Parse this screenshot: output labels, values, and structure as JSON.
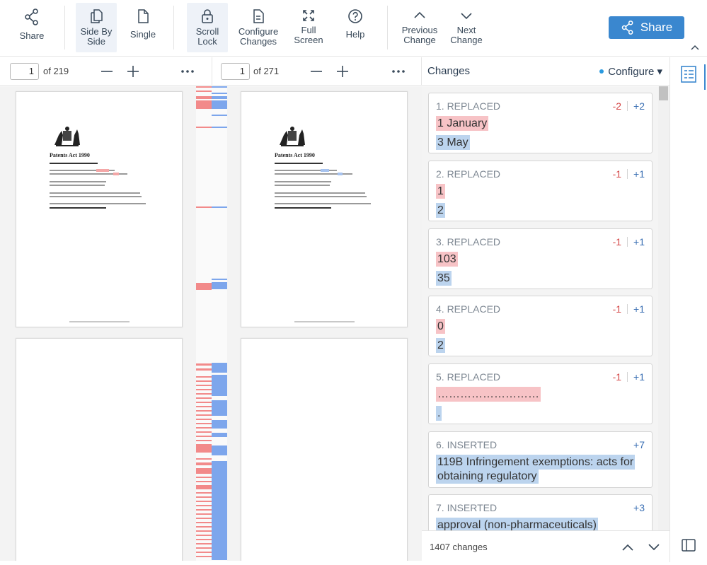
{
  "toolbar": {
    "share": "Share",
    "side_by_side": "Side By\nSide",
    "single": "Single",
    "scroll_lock": "Scroll\nLock",
    "configure_changes": "Configure\nChanges",
    "full_screen": "Full\nScreen",
    "help": "Help",
    "previous_change": "Previous\nChange",
    "next_change": "Next\nChange",
    "share_button": "Share"
  },
  "left_doc": {
    "page_value": "1",
    "page_of": "of 219",
    "title": "Patents Act 1990"
  },
  "right_doc": {
    "page_value": "1",
    "page_of": "of 271",
    "title": "Patents Act 1990"
  },
  "changes_panel": {
    "title": "Changes",
    "configure": "Configure ▾",
    "count": "1407 changes",
    "items": [
      {
        "type": "1. REPLACED",
        "minus": "-2",
        "plus": "+2",
        "old": "1 January",
        "new": "3 May"
      },
      {
        "type": "2. REPLACED",
        "minus": "-1",
        "plus": "+1",
        "old": "1",
        "new": "2"
      },
      {
        "type": "3. REPLACED",
        "minus": "-1",
        "plus": "+1",
        "old": "103",
        "new": "35"
      },
      {
        "type": "4. REPLACED",
        "minus": "-1",
        "plus": "+1",
        "old": "0",
        "new": "2"
      },
      {
        "type": "5. REPLACED",
        "minus": "-1",
        "plus": "+1",
        "old": "………………………",
        "new": "."
      },
      {
        "type": "6. INSERTED",
        "plus": "+7",
        "new_line1": "119B Infringement exemptions: acts for",
        "new_line2": "obtaining regulatory"
      },
      {
        "type": "7. INSERTED",
        "plus": "+3",
        "new": "approval (non-pharmaceuticals)"
      }
    ]
  },
  "colors": {
    "accent": "#3a87cf",
    "deleted": "#f7c3c6",
    "inserted": "#bcd4ee",
    "minus_text": "#d44545",
    "plus_text": "#3a6fb3"
  },
  "icons": [
    "share-icon",
    "side-by-side-icon",
    "single-page-icon",
    "lock-icon",
    "configure-changes-icon",
    "full-screen-icon",
    "help-icon",
    "chevron-up-icon",
    "chevron-down-icon",
    "minus-icon",
    "plus-icon",
    "more-icon",
    "changes-list-icon",
    "panel-toggle-icon"
  ]
}
